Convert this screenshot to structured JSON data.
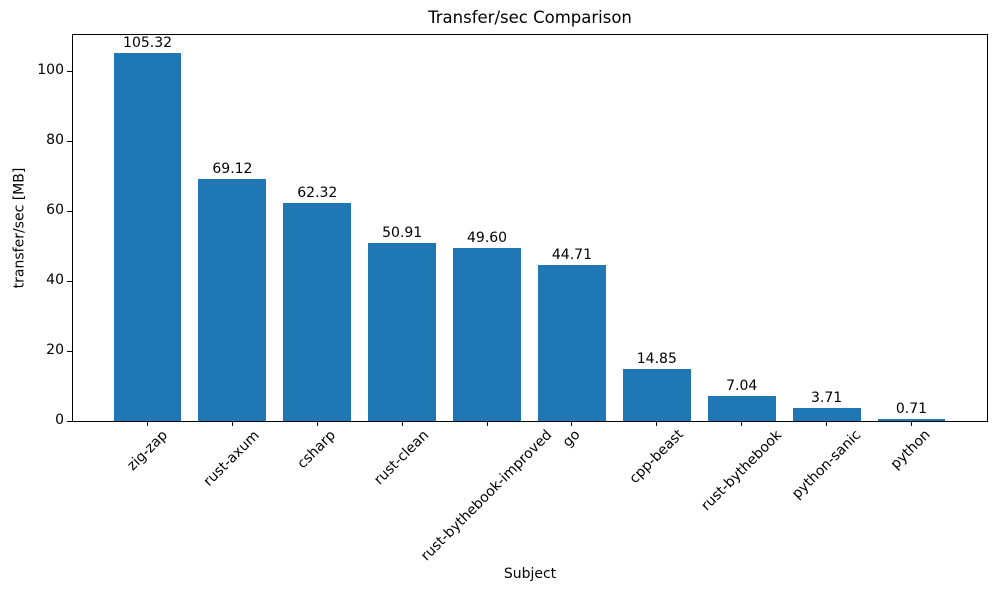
{
  "chart_data": {
    "type": "bar",
    "title": "Transfer/sec Comparison",
    "xlabel": "Subject",
    "ylabel": "transfer/sec [MB]",
    "categories": [
      "zig-zap",
      "rust-axum",
      "csharp",
      "rust-clean",
      "rust-bythebook-improved",
      "go",
      "cpp-beast",
      "rust-bythebook",
      "python-sanic",
      "python"
    ],
    "values": [
      105.32,
      69.12,
      62.32,
      50.91,
      49.6,
      44.71,
      14.85,
      7.04,
      3.71,
      0.71
    ],
    "value_labels": [
      "105.32",
      "69.12",
      "62.32",
      "50.91",
      "49.60",
      "44.71",
      "14.85",
      "7.04",
      "3.71",
      "0.71"
    ],
    "yticks": [
      0,
      20,
      40,
      60,
      80,
      100
    ],
    "ylim": [
      0,
      110.7
    ],
    "xlim": [
      -0.89,
      9.89
    ],
    "bar_width_units": 0.8,
    "bar_color": "#1f77b4",
    "grid": false,
    "legend_position": "none"
  }
}
